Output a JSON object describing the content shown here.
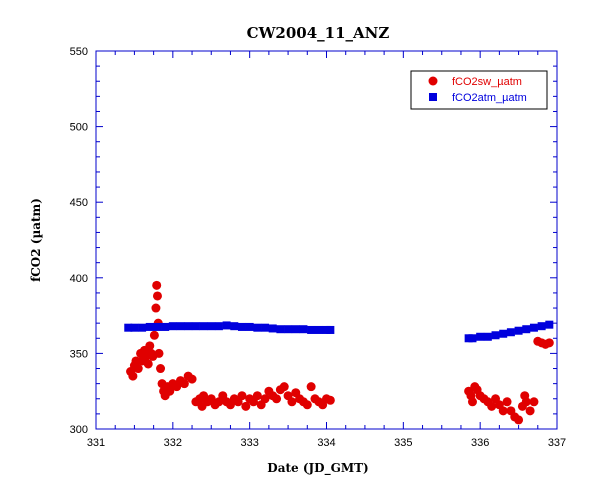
{
  "chart_data": {
    "type": "scatter",
    "title": "CW2004_11_ANZ",
    "xlabel": "Date (JD_GMT)",
    "ylabel": "fCO2 (µatm)",
    "xlim": [
      331,
      337
    ],
    "ylim": [
      300,
      550
    ],
    "xticks": [
      "331",
      "332",
      "333",
      "334",
      "335",
      "336",
      "337"
    ],
    "yticks": [
      "300",
      "350",
      "400",
      "450",
      "500",
      "550"
    ],
    "legend_position": "top-right",
    "grid": false,
    "series": [
      {
        "name": "fCO2sw_µatm",
        "color": "#e00000",
        "marker": "circle",
        "x": [
          331.45,
          331.48,
          331.5,
          331.52,
          331.55,
          331.58,
          331.6,
          331.63,
          331.65,
          331.68,
          331.7,
          331.72,
          331.74,
          331.76,
          331.78,
          331.79,
          331.8,
          331.81,
          331.82,
          331.84,
          331.86,
          331.88,
          331.9,
          331.93,
          331.96,
          332.0,
          332.05,
          332.1,
          332.15,
          332.2,
          332.25,
          332.3,
          332.35,
          332.38,
          332.4,
          332.45,
          332.5,
          332.55,
          332.6,
          332.65,
          332.7,
          332.75,
          332.8,
          332.85,
          332.9,
          332.95,
          333.0,
          333.05,
          333.1,
          333.15,
          333.2,
          333.25,
          333.3,
          333.35,
          333.4,
          333.45,
          333.5,
          333.55,
          333.6,
          333.65,
          333.7,
          333.75,
          333.8,
          333.85,
          333.9,
          333.95,
          334.0,
          334.05,
          335.85,
          335.88,
          335.9,
          335.93,
          335.96,
          336.0,
          336.05,
          336.1,
          336.15,
          336.2,
          336.25,
          336.3,
          336.35,
          336.4,
          336.45,
          336.5,
          336.55,
          336.58,
          336.6,
          336.65,
          336.7,
          336.75,
          336.8,
          336.85,
          336.9
        ],
        "y": [
          338,
          335,
          342,
          345,
          340,
          350,
          345,
          352,
          348,
          343,
          355,
          350,
          348,
          362,
          380,
          395,
          388,
          370,
          350,
          340,
          330,
          325,
          322,
          328,
          325,
          330,
          328,
          332,
          330,
          335,
          333,
          318,
          320,
          315,
          322,
          318,
          320,
          316,
          318,
          322,
          318,
          316,
          320,
          318,
          322,
          315,
          320,
          318,
          322,
          316,
          320,
          325,
          322,
          320,
          326,
          328,
          322,
          318,
          324,
          320,
          318,
          316,
          328,
          320,
          318,
          316,
          320,
          319,
          325,
          322,
          318,
          328,
          326,
          322,
          320,
          318,
          315,
          320,
          316,
          312,
          318,
          312,
          308,
          306,
          315,
          322,
          318,
          312,
          318,
          358,
          357,
          356,
          357
        ]
      },
      {
        "name": "fCO2atm_µatm",
        "color": "#0000dd",
        "marker": "square",
        "x": [
          331.42,
          331.5,
          331.6,
          331.7,
          331.8,
          331.9,
          332.0,
          332.1,
          332.2,
          332.3,
          332.4,
          332.5,
          332.6,
          332.7,
          332.8,
          332.9,
          333.0,
          333.1,
          333.2,
          333.3,
          333.4,
          333.5,
          333.6,
          333.7,
          333.8,
          333.9,
          334.0,
          334.05,
          335.85,
          335.9,
          336.0,
          336.1,
          336.2,
          336.3,
          336.4,
          336.5,
          336.6,
          336.7,
          336.8,
          336.9
        ],
        "y": [
          367,
          367,
          367,
          367.5,
          367.5,
          367.5,
          368,
          368,
          368,
          368,
          368,
          368,
          368,
          368.5,
          368,
          367.5,
          367.5,
          367,
          367,
          366.5,
          366,
          366,
          366,
          366,
          365.5,
          365.5,
          365.5,
          365.5,
          360,
          360,
          361,
          361,
          362,
          363,
          364,
          365,
          366,
          367,
          368,
          369
        ]
      }
    ]
  }
}
